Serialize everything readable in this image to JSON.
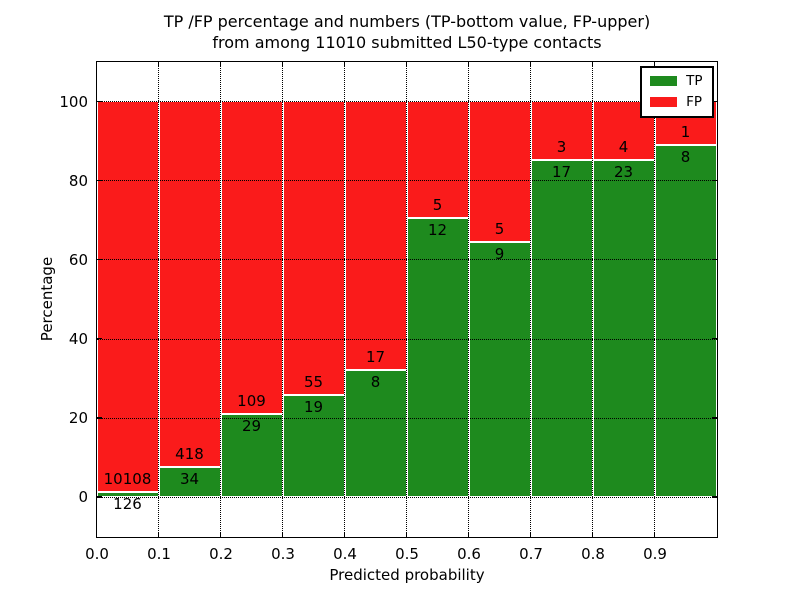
{
  "title": {
    "line1": "TP /FP percentage and numbers (TP-bottom value, FP-upper)",
    "line2": "from among 11010 submitted L50-type contacts"
  },
  "chart_data": {
    "type": "bar",
    "stacked": true,
    "normalized": "each bar totals 100%",
    "title": "TP /FP percentage and numbers (TP-bottom value, FP-upper) from among 11010 submitted L50-type contacts",
    "xlabel": "Predicted probability",
    "ylabel": "Percentage",
    "total_contacts": 11010,
    "categories": [
      "0.0",
      "0.1",
      "0.2",
      "0.3",
      "0.4",
      "0.5",
      "0.6",
      "0.7",
      "0.8",
      "0.9"
    ],
    "bin_width": 0.1,
    "series": [
      {
        "name": "TP",
        "color": "#1e8a1e",
        "counts": [
          126,
          34,
          29,
          19,
          8,
          12,
          9,
          17,
          23,
          8
        ]
      },
      {
        "name": "FP",
        "color": "#fa1b1b",
        "counts": [
          10108,
          418,
          109,
          55,
          17,
          5,
          5,
          3,
          4,
          1
        ]
      }
    ],
    "tp_percent": [
      1.2,
      7.5,
      21.0,
      25.7,
      32.0,
      70.6,
      64.3,
      85.0,
      85.2,
      88.9
    ],
    "ylim": [
      -10,
      110
    ],
    "yticks": [
      0,
      20,
      40,
      60,
      80,
      100
    ],
    "xticks": [
      "0.0",
      "0.1",
      "0.2",
      "0.3",
      "0.4",
      "0.5",
      "0.6",
      "0.7",
      "0.8",
      "0.9"
    ],
    "grid": true,
    "legend_position": "upper right"
  },
  "legend": {
    "items": [
      {
        "label": "TP",
        "color": "#1e8a1e"
      },
      {
        "label": "FP",
        "color": "#fa1b1b"
      }
    ]
  },
  "colors": {
    "tp": "#1e8a1e",
    "fp": "#fa1b1b",
    "bar_edge": "#ffffff",
    "grid": "#000000",
    "background": "#ffffff"
  }
}
